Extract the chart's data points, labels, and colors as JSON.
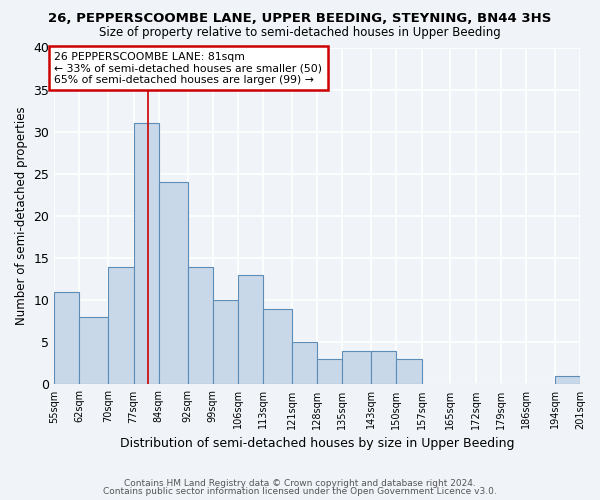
{
  "title1": "26, PEPPERSCOOMBE LANE, UPPER BEEDING, STEYNING, BN44 3HS",
  "title2": "Size of property relative to semi-detached houses in Upper Beeding",
  "xlabel": "Distribution of semi-detached houses by size in Upper Beeding",
  "ylabel": "Number of semi-detached properties",
  "bin_labels": [
    "55sqm",
    "62sqm",
    "70sqm",
    "77sqm",
    "84sqm",
    "92sqm",
    "99sqm",
    "106sqm",
    "113sqm",
    "121sqm",
    "128sqm",
    "135sqm",
    "143sqm",
    "150sqm",
    "157sqm",
    "165sqm",
    "172sqm",
    "179sqm",
    "186sqm",
    "194sqm",
    "201sqm"
  ],
  "bin_edges": [
    55,
    62,
    70,
    77,
    84,
    92,
    99,
    106,
    113,
    121,
    128,
    135,
    143,
    150,
    157,
    165,
    172,
    179,
    186,
    194,
    201
  ],
  "bar_values": [
    11,
    8,
    14,
    31,
    24,
    14,
    10,
    13,
    9,
    5,
    3,
    4,
    4,
    3,
    0,
    0,
    0,
    0,
    0,
    1
  ],
  "bar_color": "#c8d8e8",
  "bar_edge_color": "#5b8db8",
  "property_size": 81,
  "property_bin_index": 3,
  "annotation_title": "26 PEPPERSCOOMBE LANE: 81sqm",
  "annotation_line1": "← 33% of semi-detached houses are smaller (50)",
  "annotation_line2": "65% of semi-detached houses are larger (99) →",
  "annotation_box_color": "#ffffff",
  "annotation_box_edge": "#cc0000",
  "property_line_color": "#cc0000",
  "ylim": [
    0,
    40
  ],
  "yticks": [
    0,
    5,
    10,
    15,
    20,
    25,
    30,
    35,
    40
  ],
  "footer1": "Contains HM Land Registry data © Crown copyright and database right 2024.",
  "footer2": "Contains public sector information licensed under the Open Government Licence v3.0.",
  "bg_color": "#f0f4f8",
  "grid_color": "#ffffff"
}
